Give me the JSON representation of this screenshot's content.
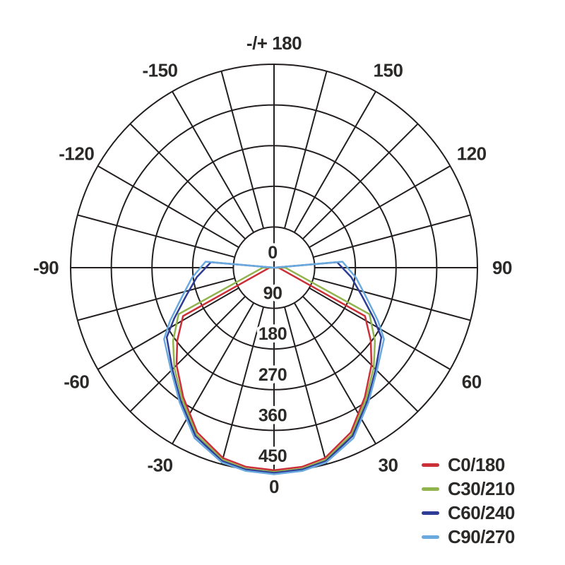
{
  "chart_data": {
    "type": "line",
    "subtype": "polar-photometric-distribution",
    "title": "",
    "angular_axis": {
      "unit": "degrees",
      "zero_direction": "down",
      "grid_step_degrees": 15,
      "label_step_degrees": 30,
      "labels": [
        {
          "angle": 180,
          "text": "-/+ 180"
        },
        {
          "angle": 150,
          "text": "150"
        },
        {
          "angle": 120,
          "text": "120"
        },
        {
          "angle": 90,
          "text": "90"
        },
        {
          "angle": 60,
          "text": "60"
        },
        {
          "angle": 30,
          "text": "30"
        },
        {
          "angle": 0,
          "text": "0"
        },
        {
          "angle": -30,
          "text": "-30"
        },
        {
          "angle": -60,
          "text": "-60"
        },
        {
          "angle": -90,
          "text": "-90"
        },
        {
          "angle": -120,
          "text": "-120"
        },
        {
          "angle": -150,
          "text": "-150"
        }
      ]
    },
    "radial_axis": {
      "ticks": [
        0,
        90,
        180,
        270,
        360,
        450
      ],
      "max": 450,
      "tick_labels": [
        "0",
        "90",
        "180",
        "270",
        "360",
        "450"
      ]
    },
    "grid": {
      "color": "#231f20",
      "visible": true
    },
    "legend_position": "bottom-right",
    "series": [
      {
        "name": "C0/180",
        "color": "#cb2f37",
        "points": [
          [
            -98,
            0
          ],
          [
            -90,
            10
          ],
          [
            -62,
            228
          ],
          [
            -53,
            268
          ],
          [
            -45,
            305
          ],
          [
            -35,
            350
          ],
          [
            -25,
            402
          ],
          [
            -15,
            436
          ],
          [
            -8,
            445
          ],
          [
            0,
            448
          ],
          [
            8,
            445
          ],
          [
            15,
            436
          ],
          [
            25,
            402
          ],
          [
            35,
            350
          ],
          [
            45,
            305
          ],
          [
            53,
            268
          ],
          [
            62,
            228
          ],
          [
            90,
            10
          ],
          [
            98,
            0
          ]
        ]
      },
      {
        "name": "C30/210",
        "color": "#92b44f",
        "points": [
          [
            -100,
            0
          ],
          [
            -90,
            25
          ],
          [
            -64,
            235
          ],
          [
            -54,
            276
          ],
          [
            -45,
            312
          ],
          [
            -35,
            355
          ],
          [
            -25,
            407
          ],
          [
            -15,
            440
          ],
          [
            -8,
            449
          ],
          [
            0,
            452
          ],
          [
            8,
            449
          ],
          [
            15,
            440
          ],
          [
            25,
            407
          ],
          [
            35,
            355
          ],
          [
            45,
            312
          ],
          [
            54,
            276
          ],
          [
            64,
            235
          ],
          [
            90,
            25
          ],
          [
            100,
            0
          ]
        ]
      },
      {
        "name": "C60/240",
        "color": "#2d3d96",
        "points": [
          [
            -107,
            0
          ],
          [
            -95,
            140
          ],
          [
            -83,
            172
          ],
          [
            -72,
            205
          ],
          [
            -63,
            248
          ],
          [
            -57,
            283
          ],
          [
            -45,
            318
          ],
          [
            -35,
            360
          ],
          [
            -25,
            411
          ],
          [
            -15,
            443
          ],
          [
            -8,
            451
          ],
          [
            0,
            454
          ],
          [
            8,
            451
          ],
          [
            15,
            443
          ],
          [
            25,
            411
          ],
          [
            35,
            360
          ],
          [
            45,
            318
          ],
          [
            57,
            283
          ],
          [
            63,
            248
          ],
          [
            72,
            205
          ],
          [
            83,
            172
          ],
          [
            95,
            140
          ],
          [
            107,
            0
          ]
        ]
      },
      {
        "name": "C90/270",
        "color": "#6aa9de",
        "points": [
          [
            -110,
            0
          ],
          [
            -95,
            152
          ],
          [
            -83,
            183
          ],
          [
            -72,
            215
          ],
          [
            -63,
            258
          ],
          [
            -57,
            290
          ],
          [
            -45,
            322
          ],
          [
            -35,
            364
          ],
          [
            -25,
            416
          ],
          [
            -15,
            446
          ],
          [
            -8,
            454
          ],
          [
            0,
            457
          ],
          [
            8,
            454
          ],
          [
            15,
            446
          ],
          [
            25,
            416
          ],
          [
            35,
            364
          ],
          [
            45,
            322
          ],
          [
            57,
            290
          ],
          [
            63,
            258
          ],
          [
            72,
            215
          ],
          [
            83,
            183
          ],
          [
            95,
            152
          ],
          [
            110,
            0
          ]
        ]
      }
    ]
  },
  "legend": {
    "items": [
      {
        "label": "C0/180",
        "color": "#cb2f37"
      },
      {
        "label": "C30/210",
        "color": "#92b44f"
      },
      {
        "label": "C60/240",
        "color": "#2d3d96"
      },
      {
        "label": "C90/270",
        "color": "#6aa9de"
      }
    ]
  },
  "text_color": "#2b2a29"
}
